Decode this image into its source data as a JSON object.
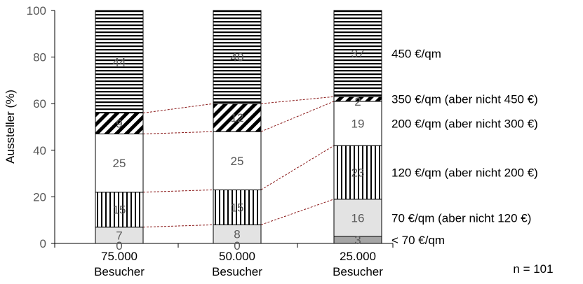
{
  "chart_data": {
    "type": "bar",
    "stacked": true,
    "categories": [
      [
        "75.000",
        "Besucher"
      ],
      [
        "50.000",
        "Besucher"
      ],
      [
        "25.000",
        "Besucher"
      ]
    ],
    "ylabel": "Aussteller (%)",
    "ylim": [
      0,
      100
    ],
    "yticks": [
      0,
      20,
      40,
      60,
      80,
      100
    ],
    "grid": false,
    "note": "n = 101",
    "series": [
      {
        "name": "< 70 €/qm",
        "values": [
          0,
          0,
          3
        ],
        "labels": [
          "0",
          "0",
          "3"
        ],
        "fill": "#a6a6a6"
      },
      {
        "name": "70 €/qm (aber nicht 120 €)",
        "values": [
          7,
          8,
          16
        ],
        "labels": [
          "7",
          "8",
          "16"
        ],
        "fill": "#e3e3e3"
      },
      {
        "name": "120 €/qm (aber nicht 200 €)",
        "values": [
          15,
          15,
          23
        ],
        "labels": [
          "15",
          "15",
          "23"
        ],
        "fill": "vertical-stripes"
      },
      {
        "name": "200 €/qm (aber nicht 300 €)",
        "values": [
          25,
          25,
          19
        ],
        "labels": [
          "25",
          "25",
          "19"
        ],
        "fill": "#ffffff"
      },
      {
        "name": "350 €/qm (aber nicht 450 €)",
        "values": [
          9,
          12,
          2
        ],
        "labels": [
          "9",
          "12",
          "2"
        ],
        "fill": "diagonal-stripes"
      },
      {
        "name": "450 €/qm",
        "values": [
          44,
          40,
          37
        ],
        "labels": [
          "44",
          "40",
          "37"
        ],
        "fill": "horizontal-stripes"
      }
    ],
    "connector_color": "#8b1a1a"
  }
}
